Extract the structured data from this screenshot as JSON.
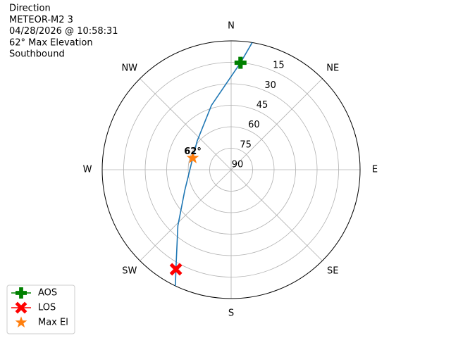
{
  "chart_data": {
    "type": "polar",
    "title_lines": [
      "Direction",
      "METEOR-M2 3",
      "04/28/2026 @ 10:58:31",
      "62° Max Elevation",
      "Southbound"
    ],
    "rlim": [
      90,
      0
    ],
    "rticks": [
      15,
      30,
      45,
      60,
      75,
      90
    ],
    "thetaticks": [
      {
        "value": 0,
        "label": "N"
      },
      {
        "value": 45,
        "label": "NE"
      },
      {
        "value": 90,
        "label": "E"
      },
      {
        "value": 135,
        "label": "SE"
      },
      {
        "value": 180,
        "label": "S"
      },
      {
        "value": 225,
        "label": "SW"
      },
      {
        "value": 270,
        "label": "W"
      },
      {
        "value": 315,
        "label": "NW"
      }
    ],
    "grid": true,
    "track": {
      "color": "#1f77b4",
      "azimuth": [
        9.4,
        5,
        343,
        310,
        287,
        246,
        223.5,
        209,
        205.6
      ],
      "elevation": [
        0,
        15,
        43,
        59,
        62,
        54.6,
        36,
        10.5,
        0
      ]
    },
    "markers": [
      {
        "name": "AOS",
        "color": "#008000",
        "marker": "plus",
        "azimuth": [
          5
        ],
        "elevation": [
          15
        ]
      },
      {
        "name": "LOS",
        "color": "#ff0000",
        "marker": "x",
        "azimuth": [
          209
        ],
        "elevation": [
          10.5
        ]
      },
      {
        "name": "Max El",
        "color": "#ff7f0e",
        "marker": "star",
        "azimuth": [
          287
        ],
        "elevation": [
          62
        ]
      }
    ],
    "annotations": [
      {
        "text": "62°",
        "azimuth": 287,
        "elevation": 62
      }
    ],
    "legend": "lower left"
  }
}
